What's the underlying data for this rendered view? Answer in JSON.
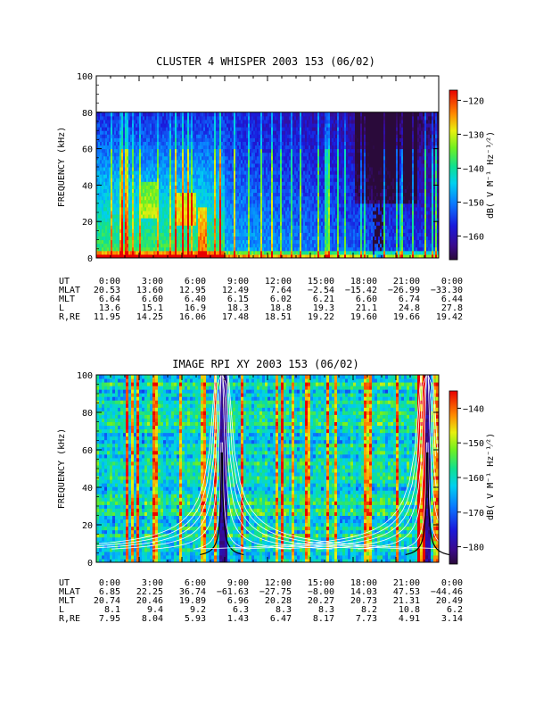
{
  "chart_data": [
    {
      "type": "heatmap",
      "title": "CLUSTER 4 WHISPER 2003 153 (06/02)",
      "ylabel": "FREQUENCY (kHz)",
      "ylim": [
        0,
        100
      ],
      "y_ticks": [
        "0",
        "20",
        "40",
        "60",
        "80",
        "100"
      ],
      "x_range_hours": [
        0,
        24
      ],
      "data_top_khz": 80,
      "colorbar": {
        "label": "dB( V M⁻¹ Hz⁻¹⁄²)",
        "range": [
          -167,
          -117
        ],
        "ticks": [
          "-120",
          "-130",
          "-140",
          "-150",
          "-160"
        ]
      },
      "ephemeris": {
        "row_labels": [
          "UT",
          "MLAT",
          "MLT",
          "L",
          "R,RE"
        ],
        "columns": [
          [
            "0:00",
            "20.53",
            "6.64",
            "13.6",
            "11.95"
          ],
          [
            "3:00",
            "13.60",
            "6.60",
            "15.1",
            "14.25"
          ],
          [
            "6:00",
            "12.95",
            "6.40",
            "16.9",
            "16.06"
          ],
          [
            "9:00",
            "12.49",
            "6.15",
            "18.3",
            "17.48"
          ],
          [
            "12:00",
            "7.64",
            "6.02",
            "18.8",
            "18.51"
          ],
          [
            "15:00",
            "−2.54",
            "6.21",
            "19.3",
            "19.22"
          ],
          [
            "18:00",
            "−15.42",
            "6.60",
            "21.1",
            "19.60"
          ],
          [
            "21:00",
            "−26.99",
            "6.74",
            "24.8",
            "19.66"
          ],
          [
            "0:00",
            "−33.30",
            "6.44",
            "27.8",
            "19.42"
          ]
        ]
      }
    },
    {
      "type": "heatmap",
      "title": "IMAGE RPI XY 2003 153 (06/02)",
      "ylabel": "FREQUENCY (kHz)",
      "ylim": [
        0,
        100
      ],
      "y_ticks": [
        "0",
        "20",
        "40",
        "60",
        "80",
        "100"
      ],
      "x_range_hours": [
        0,
        24
      ],
      "colorbar": {
        "label": "dB( V M⁻¹ Hz⁻¹⁄²)",
        "range": [
          -185,
          -135
        ],
        "ticks": [
          "-140",
          "-150",
          "-160",
          "-170",
          "-180"
        ]
      },
      "ephemeris": {
        "row_labels": [
          "UT",
          "MLAT",
          "MLT",
          "L",
          "R,RE"
        ],
        "columns": [
          [
            "0:00",
            "6.85",
            "20.74",
            "8.1",
            "7.95"
          ],
          [
            "3:00",
            "22.25",
            "20.46",
            "9.4",
            "8.04"
          ],
          [
            "6:00",
            "36.74",
            "19.89",
            "9.2",
            "5.93"
          ],
          [
            "9:00",
            "−61.63",
            "6.96",
            "6.3",
            "1.43"
          ],
          [
            "12:00",
            "−27.75",
            "20.28",
            "8.3",
            "6.47"
          ],
          [
            "15:00",
            "−8.00",
            "20.27",
            "8.3",
            "8.17"
          ],
          [
            "18:00",
            "14.03",
            "20.73",
            "8.2",
            "7.73"
          ],
          [
            "21:00",
            "47.53",
            "21.31",
            "10.8",
            "4.91"
          ],
          [
            "0:00",
            "−44.46",
            "20.49",
            "6.2",
            "3.14"
          ]
        ]
      }
    }
  ]
}
